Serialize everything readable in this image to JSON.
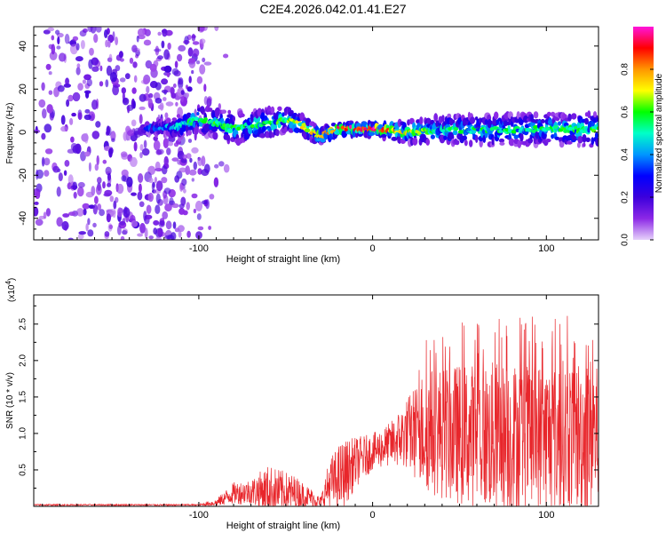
{
  "title": "C2E4.2026.042.01.41.E27",
  "chart_data": [
    {
      "type": "heatmap",
      "title": "C2E4.2026.042.01.41.E27",
      "xlabel": "Height of straight line (km)",
      "ylabel": "Frequency (Hz)",
      "xlim": [
        -195,
        130
      ],
      "ylim": [
        -50,
        49
      ],
      "xticks": [
        -100,
        0,
        100
      ],
      "xtick_labels": [
        "-100",
        "0",
        "100"
      ],
      "yticks": [
        -40,
        -20,
        0,
        20,
        40
      ],
      "ytick_labels": [
        "-40",
        "-20",
        "0",
        "20",
        "40"
      ],
      "colorbar": {
        "label": "Normalized spectral amplitude",
        "range": [
          0,
          1
        ],
        "ticks": [
          0.0,
          0.2,
          0.4,
          0.6,
          0.8
        ],
        "tick_labels": [
          "0.0",
          "0.2",
          "0.4",
          "0.6",
          "0.8"
        ],
        "colors": [
          "#e6d2fa",
          "#8c28e6",
          "#3c00dc",
          "#0000ff",
          "#0096ff",
          "#00ffc8",
          "#00ff00",
          "#ffff00",
          "#ff9600",
          "#ff0000",
          "#ff14dc"
        ]
      },
      "noise_region_x": [
        -195,
        -95
      ],
      "band": [
        {
          "x": -130,
          "center": 1.5,
          "width": 4,
          "amp": 0.35
        },
        {
          "x": -110,
          "center": 3,
          "width": 10,
          "amp": 0.5
        },
        {
          "x": -100,
          "center": 6,
          "width": 12,
          "amp": 0.55
        },
        {
          "x": -80,
          "center": 2,
          "width": 14,
          "amp": 0.6
        },
        {
          "x": -60,
          "center": 4,
          "width": 13,
          "amp": 0.62
        },
        {
          "x": -50,
          "center": 6,
          "width": 11,
          "amp": 0.6
        },
        {
          "x": -40,
          "center": 3,
          "width": 9,
          "amp": 0.7
        },
        {
          "x": -30,
          "center": -2,
          "width": 7,
          "amp": 0.75
        },
        {
          "x": -20,
          "center": 1.5,
          "width": 6,
          "amp": 0.9
        },
        {
          "x": 0,
          "center": 1.5,
          "width": 6,
          "amp": 0.95
        },
        {
          "x": 20,
          "center": 0,
          "width": 10,
          "amp": 0.7
        },
        {
          "x": 40,
          "center": 1,
          "width": 13,
          "amp": 0.55
        },
        {
          "x": 70,
          "center": 1,
          "width": 14,
          "amp": 0.55
        },
        {
          "x": 100,
          "center": 1.5,
          "width": 14,
          "amp": 0.55
        },
        {
          "x": 130,
          "center": 1,
          "width": 15,
          "amp": 0.6
        }
      ]
    },
    {
      "type": "line",
      "xlabel": "Height of straight line (km)",
      "ylabel": "SNR (10 * v/v)",
      "y_multiplier_label": "(x10",
      "y_multiplier_exp": "4",
      "y_multiplier_close": ")",
      "xlim": [
        -195,
        130
      ],
      "ylim": [
        0,
        2.9
      ],
      "xticks": [
        -100,
        0,
        100
      ],
      "xtick_labels": [
        "-100",
        "0",
        "100"
      ],
      "yticks": [
        0.5,
        1.0,
        1.5,
        2.0,
        2.5
      ],
      "ytick_labels": [
        "0.5",
        "1.0",
        "1.5",
        "2.0",
        "2.5"
      ],
      "color": "#e8262b",
      "series": [
        {
          "name": "SNR",
          "envelope": [
            {
              "x": -195,
              "base": 0.02,
              "spread": 0.01
            },
            {
              "x": -100,
              "base": 0.02,
              "spread": 0.01
            },
            {
              "x": -90,
              "base": 0.05,
              "spread": 0.05
            },
            {
              "x": -80,
              "base": 0.18,
              "spread": 0.15
            },
            {
              "x": -70,
              "base": 0.2,
              "spread": 0.18
            },
            {
              "x": -60,
              "base": 0.22,
              "spread": 0.35
            },
            {
              "x": -45,
              "base": 0.18,
              "spread": 0.25
            },
            {
              "x": -35,
              "base": 0.12,
              "spread": 0.12
            },
            {
              "x": -30,
              "base": 0.05,
              "spread": 0.08
            },
            {
              "x": -25,
              "base": 0.3,
              "spread": 0.35
            },
            {
              "x": -18,
              "base": 0.4,
              "spread": 0.5
            },
            {
              "x": -10,
              "base": 0.6,
              "spread": 0.35
            },
            {
              "x": 0,
              "base": 0.75,
              "spread": 0.25
            },
            {
              "x": 10,
              "base": 0.85,
              "spread": 0.3
            },
            {
              "x": 20,
              "base": 1.0,
              "spread": 0.5
            },
            {
              "x": 30,
              "base": 1.05,
              "spread": 0.85
            },
            {
              "x": 45,
              "base": 1.0,
              "spread": 0.95
            },
            {
              "x": 70,
              "base": 0.95,
              "spread": 1.05
            },
            {
              "x": 100,
              "base": 0.95,
              "spread": 1.05
            },
            {
              "x": 130,
              "base": 1.0,
              "spread": 1.1
            }
          ]
        }
      ]
    }
  ]
}
